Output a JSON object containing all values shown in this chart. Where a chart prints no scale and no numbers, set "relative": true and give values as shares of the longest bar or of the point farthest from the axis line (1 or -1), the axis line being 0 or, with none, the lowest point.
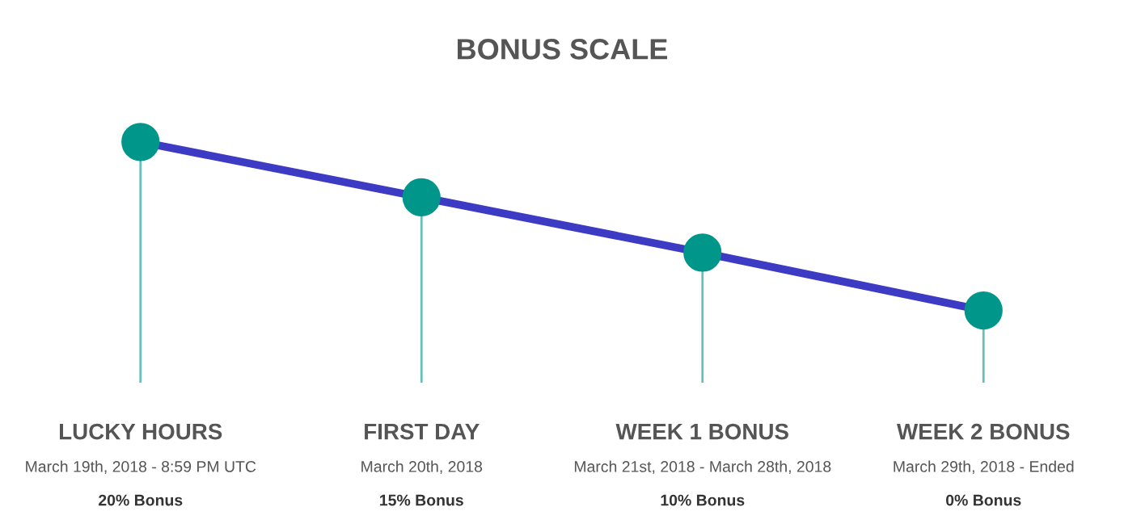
{
  "chart_data": {
    "type": "lollipop",
    "title": "BONUS SCALE",
    "relative": true,
    "categories": [
      "LUCKY HOURS",
      "FIRST DAY",
      "WEEK 1 BONUS",
      "WEEK 2 BONUS"
    ],
    "series": [
      {
        "type": "line",
        "marker": "none",
        "color": "#3d3ac4",
        "values": [
          1,
          0.77,
          0.54,
          0.3
        ]
      },
      {
        "color": "#00968a",
        "values": [
          1,
          0.77,
          0.54,
          0.3
        ]
      }
    ],
    "annotations": [
      "March 19th, 2018 - 8:59 PM UTC",
      "20% Bonus",
      "March 20th, 2018",
      "15% Bonus",
      "March 21st, 2018 - March 28th, 2018",
      "10% Bonus",
      "March 29th, 2018 - Ended",
      "0% Bonus"
    ],
    "legend": false,
    "marker": "circle",
    "line_style": "solid"
  }
}
